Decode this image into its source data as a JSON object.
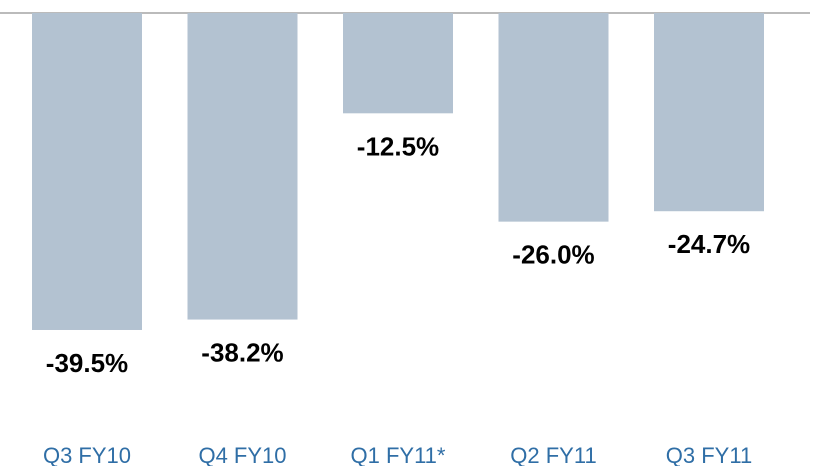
{
  "chart_data": {
    "type": "bar",
    "categories": [
      "Q3 FY10",
      "Q4 FY10",
      "Q1 FY11*",
      "Q2 FY11",
      "Q3 FY11"
    ],
    "values": [
      -39.5,
      -38.2,
      -12.5,
      -26.0,
      -24.7
    ],
    "value_labels": [
      "-39.5%",
      "-38.2%",
      "-12.5%",
      "-26.0%",
      "-24.7%"
    ],
    "color": "#b3c2d1",
    "ylim": [
      -40,
      0
    ]
  }
}
